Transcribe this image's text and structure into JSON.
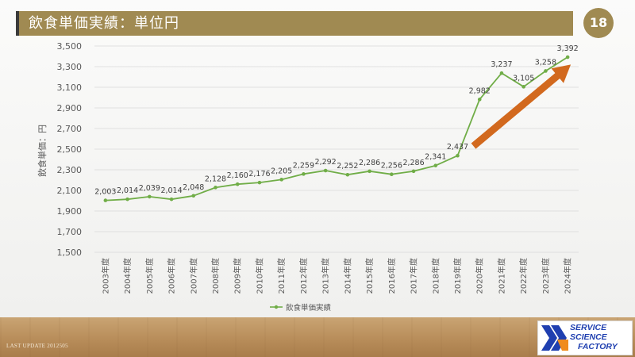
{
  "slide": {
    "title": "飲食単価実績：単位円",
    "page_number": "18",
    "last_update": "LAST UPDATE 2012505",
    "logo": {
      "line1": "SERVICE",
      "line2": "SCIENCE",
      "line3": "FACTORY"
    }
  },
  "colors": {
    "title_bar": "#a08a52",
    "series_line": "#70ad47",
    "trend_arrow": "#d2691e",
    "grid": "#d9d9d9",
    "axis_text": "#595959",
    "logo_blue": "#1f3fb0",
    "logo_orange": "#f08c1e"
  },
  "chart_data": {
    "type": "line",
    "title": "",
    "xlabel": "",
    "ylabel": "飲食単価：円",
    "ylim": [
      1500,
      3500
    ],
    "y_ticks": [
      "1,500",
      "1,700",
      "1,900",
      "2,100",
      "2,300",
      "2,500",
      "2,700",
      "2,900",
      "3,100",
      "3,300",
      "3,500"
    ],
    "y_tick_values": [
      1500,
      1700,
      1900,
      2100,
      2300,
      2500,
      2700,
      2900,
      3100,
      3300,
      3500
    ],
    "grid": true,
    "legend_position": "bottom",
    "categories": [
      "2003年度",
      "2004年度",
      "2005年度",
      "2006年度",
      "2007年度",
      "2008年度",
      "2009年度",
      "2010年度",
      "2011年度",
      "2012年度",
      "2013年度",
      "2014年度",
      "2015年度",
      "2016年度",
      "2017年度",
      "2018年度",
      "2019年度",
      "2020年度",
      "2021年度",
      "2022年度",
      "2023年度",
      "2024年度"
    ],
    "series": [
      {
        "name": "飲食単価実績",
        "values": [
          2003,
          2014,
          2039,
          2014,
          2048,
          2128,
          2160,
          2176,
          2205,
          2259,
          2292,
          2252,
          2286,
          2256,
          2286,
          2341,
          2437,
          2982,
          3237,
          3105,
          3258,
          3392
        ],
        "labels": [
          "2,003",
          "2,014",
          "2,039",
          "2,014",
          "2,048",
          "2,128",
          "2,160",
          "2,176",
          "2,205",
          "2,259",
          "2,292",
          "2,252",
          "2,286",
          "2,256",
          "2,286",
          "2,341",
          "2,437",
          "2,982",
          "3,237",
          "3,105",
          "3,258",
          "3,392"
        ]
      }
    ],
    "annotations": [
      {
        "type": "trend-arrow",
        "from_category": "2019年度",
        "to_category": "2024年度",
        "from_value": 2530,
        "to_value": 3320
      }
    ]
  }
}
